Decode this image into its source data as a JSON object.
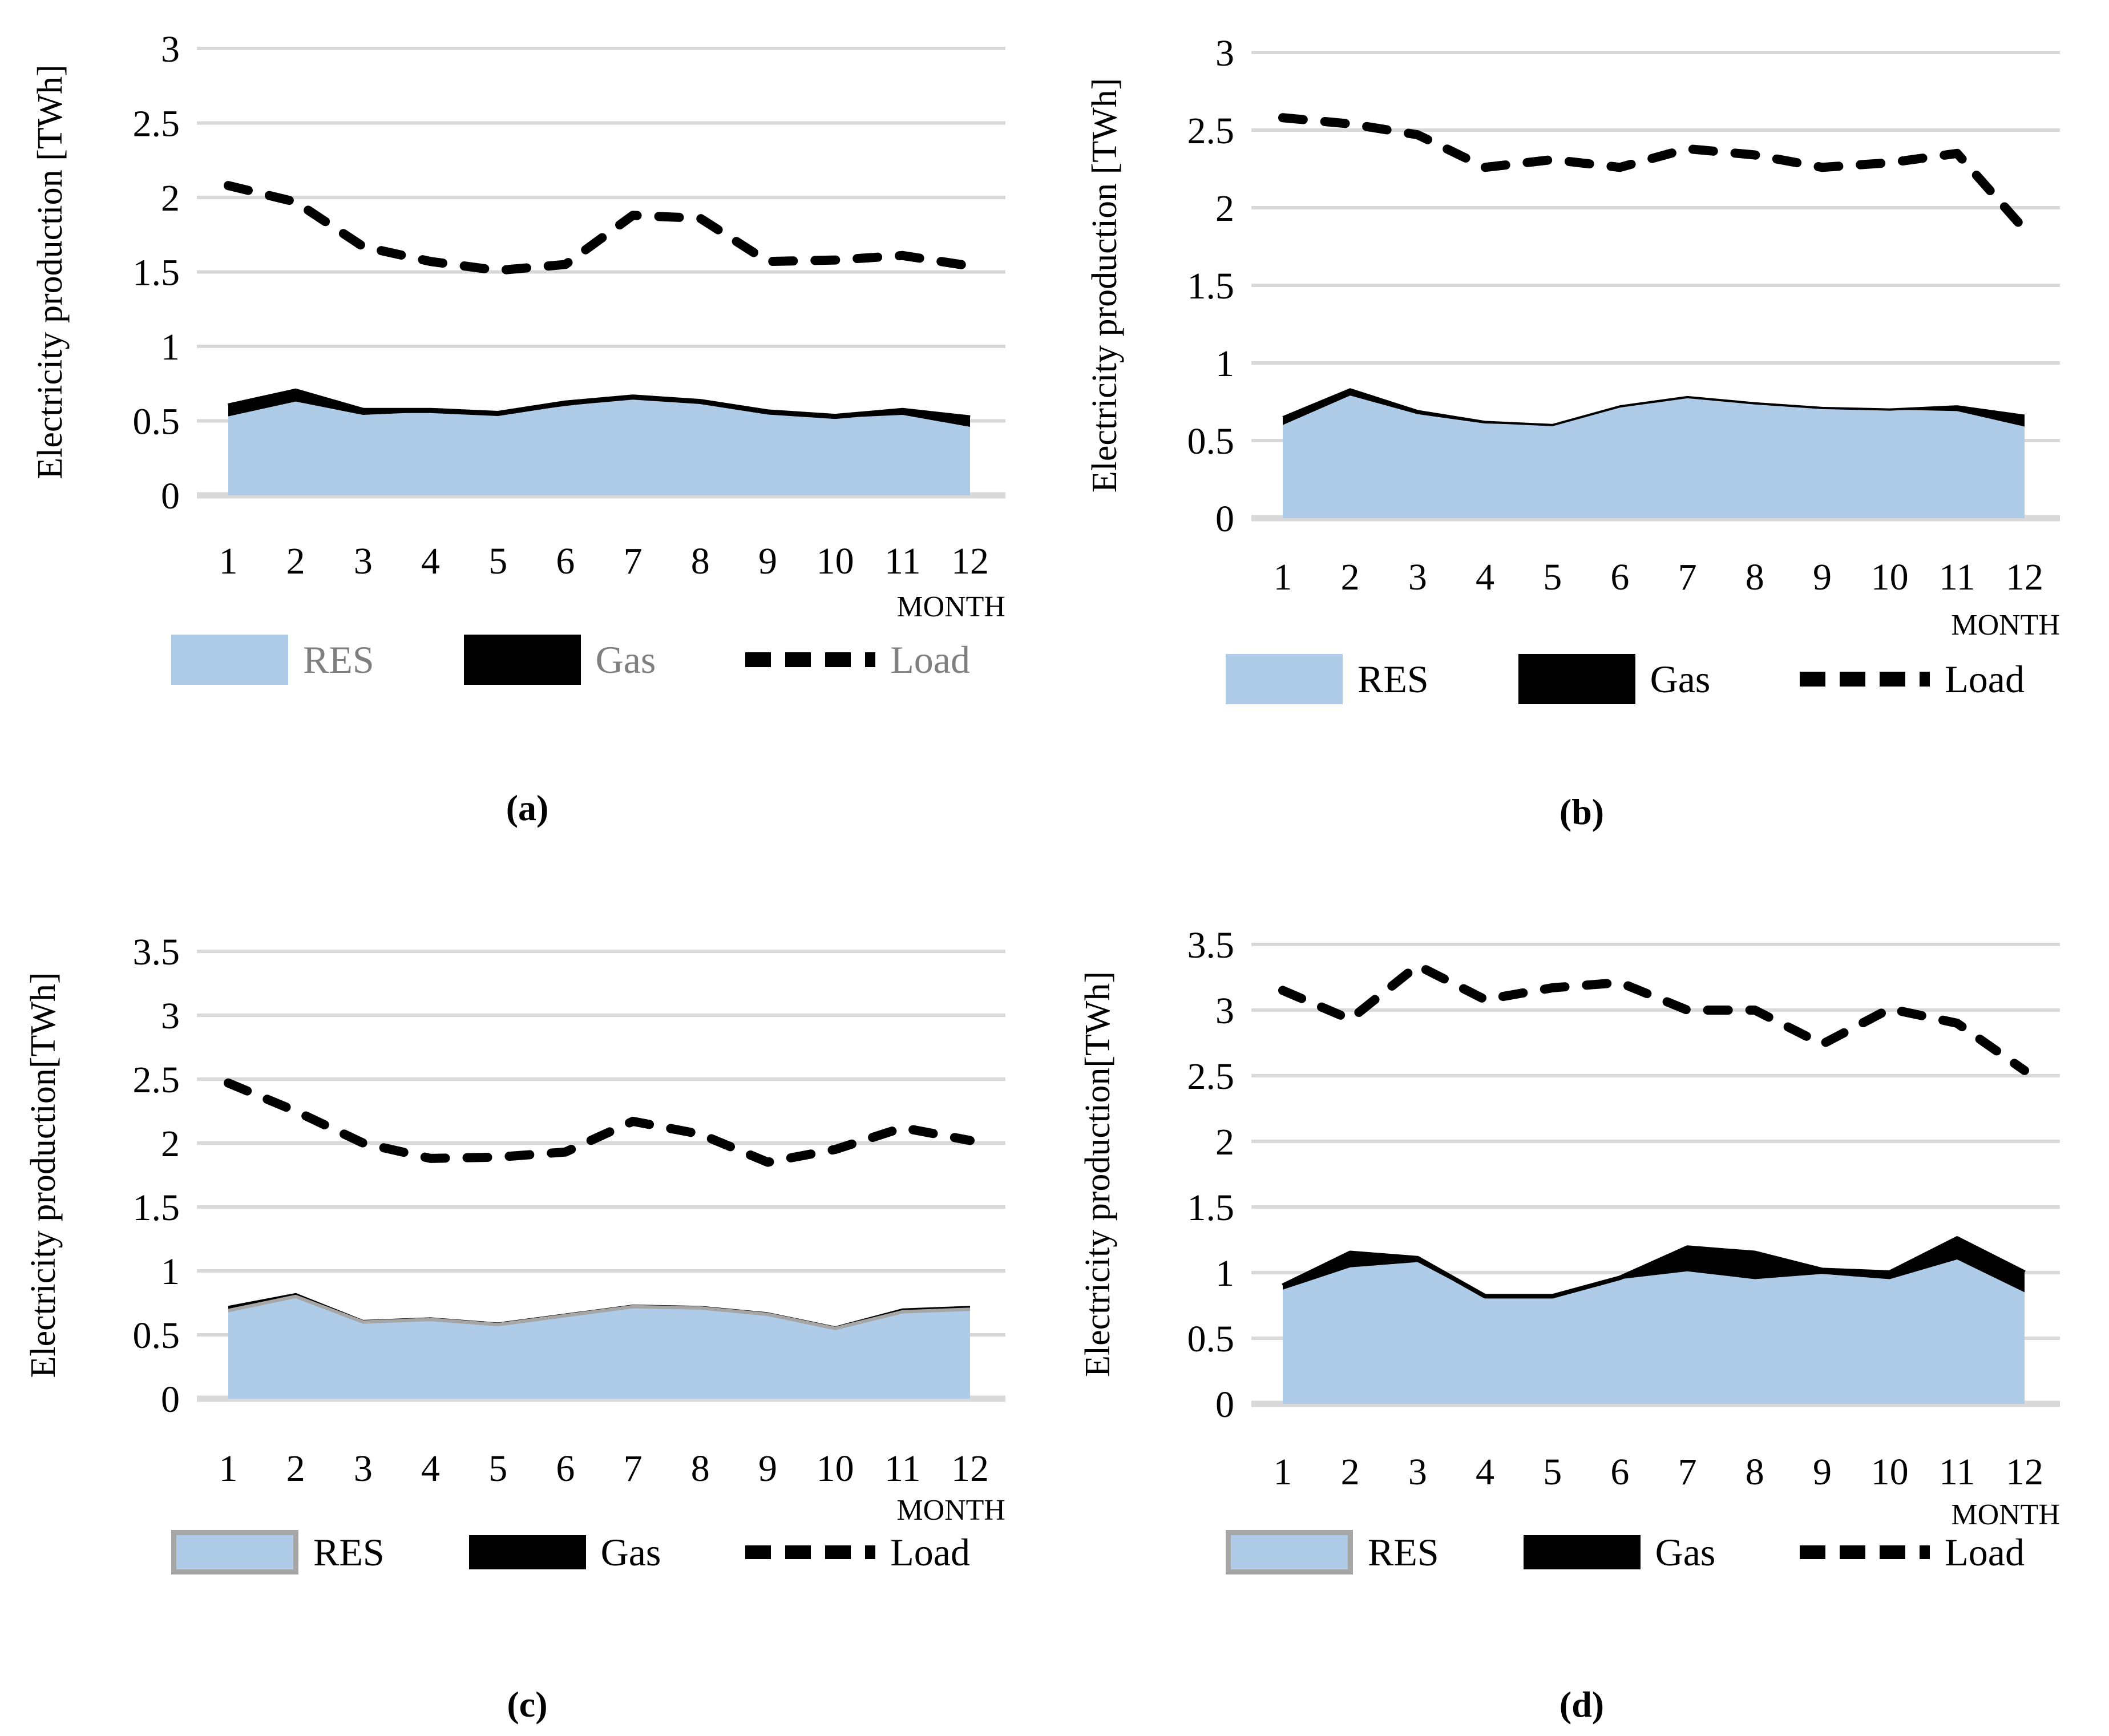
{
  "figure": {
    "background": "#ffffff",
    "description": "Four monthly electricity production combo charts (stacked areas RES+Gas with dashed Load line)"
  },
  "colors": {
    "res_fill": "#AECBE8",
    "res_outline": "#A6A6A6",
    "gas_fill": "#000000",
    "load_stroke": "#000000",
    "gridline": "#D9D9D9",
    "text": "#000000",
    "legend_text_gray": "#7F7F7F"
  },
  "chart_data": [
    {
      "id": "a",
      "type": "area",
      "caption": "(a)",
      "ylabel": "Electricity production [TWh]",
      "xlabel": "MONTH",
      "ylim": [
        0,
        3
      ],
      "yticks": [
        "3",
        "2.5",
        "2",
        "1.5",
        "1",
        "0.5",
        "0"
      ],
      "categories": [
        "1",
        "2",
        "3",
        "4",
        "5",
        "6",
        "7",
        "8",
        "9",
        "10",
        "11",
        "12"
      ],
      "grid": true,
      "legend_position": "bottom",
      "legend": {
        "res": "RES",
        "gas": "Gas",
        "load": "Load"
      },
      "series": [
        {
          "name": "RES",
          "type": "area-stacked",
          "values": [
            0.53,
            0.63,
            0.54,
            0.56,
            0.54,
            0.6,
            0.65,
            0.62,
            0.55,
            0.52,
            0.54,
            0.46
          ]
        },
        {
          "name": "Gas",
          "type": "area-stacked",
          "values": [
            0.07,
            0.07,
            0.03,
            0.01,
            0.01,
            0.02,
            0.01,
            0.01,
            0.01,
            0.01,
            0.03,
            0.06
          ]
        },
        {
          "name": "Load",
          "type": "dashed-line",
          "values": [
            2.08,
            1.97,
            1.67,
            1.57,
            1.51,
            1.55,
            1.88,
            1.86,
            1.57,
            1.58,
            1.61,
            1.54
          ]
        }
      ]
    },
    {
      "id": "b",
      "type": "area",
      "caption": "(b)",
      "ylabel": "Electricity production [TWh]",
      "xlabel": "MONTH",
      "ylim": [
        0,
        3
      ],
      "yticks": [
        "3",
        "2.5",
        "2",
        "1.5",
        "1",
        "0.5",
        "0"
      ],
      "categories": [
        "1",
        "2",
        "3",
        "4",
        "5",
        "6",
        "7",
        "8",
        "9",
        "10",
        "11",
        "12"
      ],
      "grid": true,
      "legend_position": "bottom",
      "legend": {
        "res": "RES",
        "gas": "Gas",
        "load": "Load"
      },
      "series": [
        {
          "name": "RES",
          "type": "area-stacked",
          "values": [
            0.6,
            0.79,
            0.67,
            0.61,
            0.6,
            0.72,
            0.78,
            0.74,
            0.71,
            0.7,
            0.69,
            0.59
          ]
        },
        {
          "name": "Gas",
          "type": "area-stacked",
          "values": [
            0.05,
            0.04,
            0.02,
            0.01,
            0.0,
            0.0,
            0.0,
            0.0,
            0.0,
            0.0,
            0.03,
            0.07
          ]
        },
        {
          "name": "Load",
          "type": "dashed-line",
          "values": [
            2.58,
            2.54,
            2.47,
            2.26,
            2.31,
            2.26,
            2.38,
            2.34,
            2.26,
            2.29,
            2.35,
            1.86
          ]
        }
      ]
    },
    {
      "id": "c",
      "type": "area",
      "caption": "(c)",
      "ylabel": "Electricity production[TWh]",
      "xlabel": "MONTH",
      "ylim": [
        0,
        3.5
      ],
      "yticks": [
        "3.5",
        "3",
        "2.5",
        "2",
        "1.5",
        "1",
        "0.5",
        "0"
      ],
      "categories": [
        "1",
        "2",
        "3",
        "4",
        "5",
        "6",
        "7",
        "8",
        "9",
        "10",
        "11",
        "12"
      ],
      "grid": true,
      "legend_position": "bottom",
      "legend": {
        "res": "RES",
        "gas": "Gas",
        "load": "Load"
      },
      "series": [
        {
          "name": "RES",
          "type": "area-stacked",
          "values": [
            0.69,
            0.8,
            0.6,
            0.62,
            0.58,
            0.65,
            0.72,
            0.71,
            0.66,
            0.55,
            0.68,
            0.7
          ]
        },
        {
          "name": "Gas",
          "type": "area-stacked",
          "values": [
            0.03,
            0.02,
            0.01,
            0.01,
            0.01,
            0.01,
            0.01,
            0.01,
            0.01,
            0.01,
            0.02,
            0.02
          ]
        },
        {
          "name": "Load",
          "type": "dashed-line",
          "values": [
            2.47,
            2.25,
            2.0,
            1.88,
            1.89,
            1.93,
            2.17,
            2.07,
            1.85,
            1.95,
            2.12,
            2.02
          ]
        }
      ]
    },
    {
      "id": "d",
      "type": "area",
      "caption": "(d)",
      "ylabel": "Electricity production[TWh]",
      "xlabel": "MONTH",
      "ylim": [
        0,
        3.5
      ],
      "yticks": [
        "3.5",
        "3",
        "2.5",
        "2",
        "1.5",
        "1",
        "0.5",
        "0"
      ],
      "categories": [
        "1",
        "2",
        "3",
        "4",
        "5",
        "6",
        "7",
        "8",
        "9",
        "10",
        "11",
        "12"
      ],
      "grid": true,
      "legend_position": "bottom",
      "legend": {
        "res": "RES",
        "gas": "Gas",
        "load": "Load"
      },
      "series": [
        {
          "name": "RES",
          "type": "area-stacked",
          "values": [
            0.87,
            1.04,
            1.08,
            0.81,
            0.81,
            0.95,
            1.01,
            0.95,
            0.99,
            0.95,
            1.1,
            0.85
          ]
        },
        {
          "name": "Gas",
          "type": "area-stacked",
          "values": [
            0.03,
            0.11,
            0.03,
            0.01,
            0.01,
            0.01,
            0.18,
            0.2,
            0.03,
            0.05,
            0.16,
            0.15
          ]
        },
        {
          "name": "Load",
          "type": "dashed-line",
          "values": [
            3.15,
            2.93,
            3.34,
            3.08,
            3.17,
            3.21,
            3.0,
            3.0,
            2.74,
            3.01,
            2.9,
            2.54
          ]
        }
      ]
    }
  ]
}
